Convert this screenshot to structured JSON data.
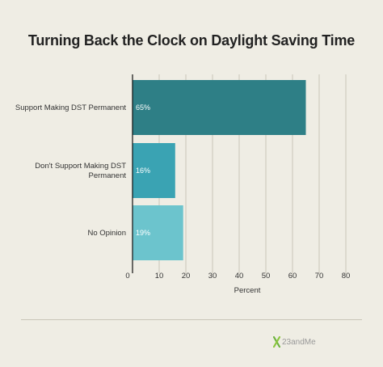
{
  "chart_data": {
    "type": "bar",
    "orientation": "horizontal",
    "title": "Turning Back the Clock on Daylight Saving Time",
    "xlabel": "Percent",
    "ylabel": "",
    "categories": [
      "Support Making DST Permanent",
      "Don't Support Making DST Permanent",
      "No Opinion"
    ],
    "category_lines": [
      [
        "Support Making DST Permanent"
      ],
      [
        "Don't Support Making DST",
        "Permanent"
      ],
      [
        "No Opinion"
      ]
    ],
    "values": [
      65,
      16,
      19
    ],
    "value_labels": [
      "65%",
      "16%",
      "19%"
    ],
    "xlim": [
      0,
      80
    ],
    "xticks": [
      0,
      10,
      20,
      30,
      40,
      50,
      60,
      70,
      80
    ],
    "grid": true,
    "colors": [
      "#2e7f86",
      "#3aa3b3",
      "#6cc4cd"
    ]
  },
  "brand": {
    "logo_text": "23andMe"
  }
}
